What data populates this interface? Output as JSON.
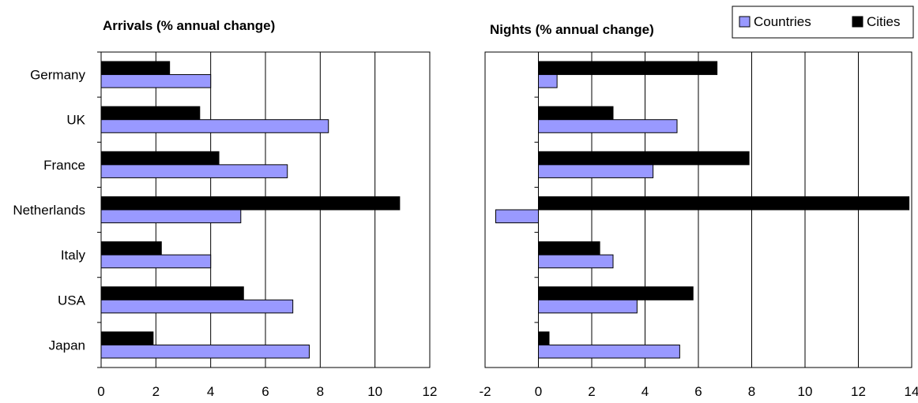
{
  "chart_data": [
    {
      "type": "bar",
      "orientation": "horizontal",
      "title": "Arrivals (% annual change)",
      "categories": [
        "Germany",
        "UK",
        "France",
        "Netherlands",
        "Italy",
        "USA",
        "Japan"
      ],
      "series": [
        {
          "name": "Cities",
          "color": "#000000",
          "values": [
            2.5,
            3.6,
            4.3,
            10.9,
            2.2,
            5.2,
            1.9
          ]
        },
        {
          "name": "Countries",
          "color": "#9999ff",
          "values": [
            4.0,
            8.3,
            6.8,
            5.1,
            4.0,
            7.0,
            7.6
          ]
        }
      ],
      "xlim": [
        0,
        12
      ],
      "xticks": [
        0,
        2,
        4,
        6,
        8,
        10,
        12
      ],
      "grid": "vertical"
    },
    {
      "type": "bar",
      "orientation": "horizontal",
      "title": "Nights (% annual change)",
      "categories": [
        "Germany",
        "UK",
        "France",
        "Netherlands",
        "Italy",
        "USA",
        "Japan"
      ],
      "series": [
        {
          "name": "Cities",
          "color": "#000000",
          "values": [
            6.7,
            2.8,
            7.9,
            13.9,
            2.3,
            5.8,
            0.4
          ]
        },
        {
          "name": "Countries",
          "color": "#9999ff",
          "values": [
            0.7,
            5.2,
            4.3,
            -1.6,
            2.8,
            3.7,
            5.3
          ]
        }
      ],
      "xlim": [
        -2,
        14
      ],
      "xticks": [
        -2,
        0,
        2,
        4,
        6,
        8,
        10,
        12,
        14
      ],
      "grid": "vertical"
    }
  ],
  "legend": {
    "placement": "top-right",
    "entries": [
      {
        "label": "Countries",
        "color": "#9999ff"
      },
      {
        "label": "Cities",
        "color": "#000000"
      }
    ]
  }
}
